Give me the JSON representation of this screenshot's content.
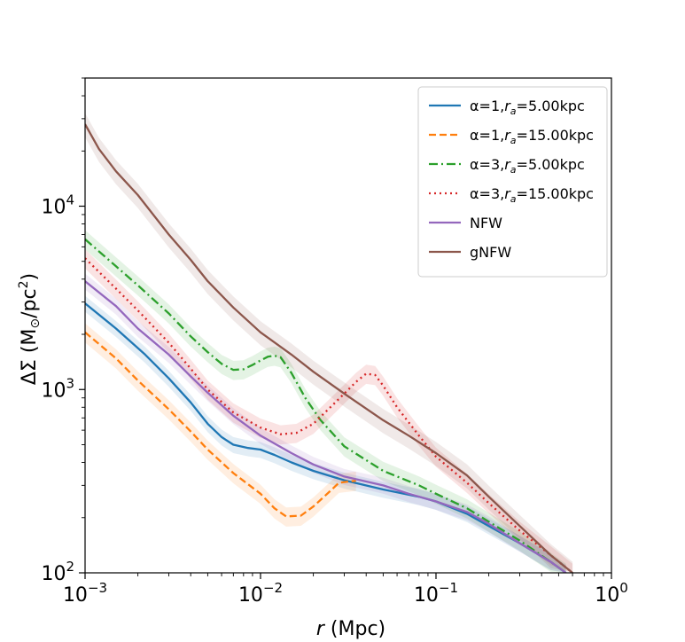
{
  "chart_data": {
    "type": "line",
    "xlabel": "r (Mpc)",
    "ylabel": "ΔΣ (M⊙/pc²)",
    "xscale": "log",
    "yscale": "log",
    "xlim": [
      0.001,
      1.0
    ],
    "ylim": [
      100,
      50000
    ],
    "grid": false,
    "legend_position": "top-right",
    "x_ticks": [
      {
        "value": 0.001,
        "base": "10",
        "exp": "−3"
      },
      {
        "value": 0.01,
        "base": "10",
        "exp": "−2"
      },
      {
        "value": 0.1,
        "base": "10",
        "exp": "−1"
      },
      {
        "value": 1.0,
        "base": "10",
        "exp": "0"
      }
    ],
    "y_ticks": [
      {
        "value": 100,
        "base": "10",
        "exp": "2"
      },
      {
        "value": 1000,
        "base": "10",
        "exp": "3"
      },
      {
        "value": 10000,
        "base": "10",
        "exp": "4"
      }
    ],
    "series": [
      {
        "name": "α=1,r_a=5.00kpc",
        "label_parts": {
          "prefix": "α=1,",
          "var": "r",
          "sub": "a",
          "suffix": "=5.00kpc"
        },
        "color": "#1f77b4",
        "style": "solid",
        "band": 0.1,
        "points": [
          [
            0.001,
            2950
          ],
          [
            0.0015,
            2150
          ],
          [
            0.0022,
            1550
          ],
          [
            0.003,
            1150
          ],
          [
            0.004,
            850
          ],
          [
            0.005,
            650
          ],
          [
            0.006,
            550
          ],
          [
            0.007,
            500
          ],
          [
            0.0085,
            480
          ],
          [
            0.01,
            470
          ],
          [
            0.012,
            440
          ],
          [
            0.015,
            400
          ],
          [
            0.02,
            360
          ],
          [
            0.03,
            320
          ],
          [
            0.05,
            285
          ],
          [
            0.08,
            260
          ],
          [
            0.1,
            245
          ],
          [
            0.15,
            210
          ],
          [
            0.2,
            180
          ],
          [
            0.3,
            145
          ],
          [
            0.45,
            115
          ],
          [
            0.55,
            100
          ]
        ]
      },
      {
        "name": "α=1,r_a=15.00kpc",
        "label_parts": {
          "prefix": "α=1,",
          "var": "r",
          "sub": "a",
          "suffix": "=15.00kpc"
        },
        "color": "#ff7f0e",
        "style": "dashed",
        "band": 0.12,
        "points": [
          [
            0.001,
            2050
          ],
          [
            0.0015,
            1480
          ],
          [
            0.002,
            1120
          ],
          [
            0.003,
            780
          ],
          [
            0.004,
            590
          ],
          [
            0.005,
            470
          ],
          [
            0.007,
            350
          ],
          [
            0.01,
            270
          ],
          [
            0.012,
            225
          ],
          [
            0.014,
            203
          ],
          [
            0.017,
            205
          ],
          [
            0.02,
            230
          ],
          [
            0.025,
            280
          ],
          [
            0.028,
            310
          ],
          [
            0.035,
            318
          ]
        ]
      },
      {
        "name": "α=3,r_a=5.00kpc",
        "label_parts": {
          "prefix": "α=3,",
          "var": "r",
          "sub": "a",
          "suffix": "=5.00kpc"
        },
        "color": "#2ca02c",
        "style": "dashdot",
        "band": 0.12,
        "points": [
          [
            0.001,
            6600
          ],
          [
            0.0015,
            4700
          ],
          [
            0.002,
            3700
          ],
          [
            0.003,
            2600
          ],
          [
            0.004,
            1950
          ],
          [
            0.005,
            1600
          ],
          [
            0.006,
            1380
          ],
          [
            0.007,
            1280
          ],
          [
            0.008,
            1290
          ],
          [
            0.009,
            1360
          ],
          [
            0.01,
            1440
          ],
          [
            0.011,
            1510
          ],
          [
            0.012,
            1530
          ],
          [
            0.013,
            1500
          ],
          [
            0.015,
            1230
          ],
          [
            0.018,
            900
          ],
          [
            0.022,
            680
          ],
          [
            0.03,
            490
          ],
          [
            0.05,
            360
          ],
          [
            0.08,
            300
          ],
          [
            0.1,
            270
          ],
          [
            0.15,
            225
          ],
          [
            0.2,
            190
          ],
          [
            0.3,
            150
          ],
          [
            0.45,
            115
          ],
          [
            0.55,
            100
          ]
        ]
      },
      {
        "name": "α=3,r_a=15.00kpc",
        "label_parts": {
          "prefix": "α=3,",
          "var": "r",
          "sub": "a",
          "suffix": "=15.00kpc"
        },
        "color": "#d62728",
        "style": "dotted",
        "band": 0.12,
        "points": [
          [
            0.001,
            5200
          ],
          [
            0.0015,
            3550
          ],
          [
            0.002,
            2700
          ],
          [
            0.003,
            1800
          ],
          [
            0.004,
            1300
          ],
          [
            0.005,
            1000
          ],
          [
            0.007,
            750
          ],
          [
            0.01,
            620
          ],
          [
            0.013,
            570
          ],
          [
            0.016,
            580
          ],
          [
            0.02,
            650
          ],
          [
            0.025,
            800
          ],
          [
            0.03,
            950
          ],
          [
            0.035,
            1100
          ],
          [
            0.04,
            1220
          ],
          [
            0.045,
            1200
          ],
          [
            0.05,
            1050
          ],
          [
            0.06,
            800
          ],
          [
            0.08,
            560
          ],
          [
            0.1,
            430
          ],
          [
            0.15,
            310
          ],
          [
            0.2,
            240
          ],
          [
            0.3,
            170
          ],
          [
            0.45,
            125
          ],
          [
            0.6,
            100
          ]
        ]
      },
      {
        "name": "NFW",
        "label_parts": {
          "prefix": "NFW",
          "var": "",
          "sub": "",
          "suffix": ""
        },
        "color": "#9467bd",
        "style": "solid",
        "band": 0.1,
        "points": [
          [
            0.001,
            3900
          ],
          [
            0.0015,
            2850
          ],
          [
            0.002,
            2150
          ],
          [
            0.003,
            1550
          ],
          [
            0.004,
            1180
          ],
          [
            0.005,
            960
          ],
          [
            0.007,
            720
          ],
          [
            0.01,
            560
          ],
          [
            0.015,
            450
          ],
          [
            0.02,
            390
          ],
          [
            0.03,
            335
          ],
          [
            0.05,
            300
          ],
          [
            0.07,
            270
          ],
          [
            0.1,
            245
          ],
          [
            0.15,
            215
          ],
          [
            0.2,
            185
          ],
          [
            0.3,
            145
          ],
          [
            0.45,
            115
          ],
          [
            0.55,
            100
          ]
        ]
      },
      {
        "name": "gNFW",
        "label_parts": {
          "prefix": "gNFW",
          "var": "",
          "sub": "",
          "suffix": ""
        },
        "color": "#8c564b",
        "style": "solid",
        "band": 0.15,
        "points": [
          [
            0.001,
            28000
          ],
          [
            0.0012,
            20500
          ],
          [
            0.0015,
            15500
          ],
          [
            0.002,
            11500
          ],
          [
            0.003,
            7000
          ],
          [
            0.004,
            5100
          ],
          [
            0.005,
            3900
          ],
          [
            0.007,
            2800
          ],
          [
            0.01,
            2050
          ],
          [
            0.015,
            1550
          ],
          [
            0.02,
            1250
          ],
          [
            0.03,
            950
          ],
          [
            0.05,
            680
          ],
          [
            0.07,
            560
          ],
          [
            0.1,
            450
          ],
          [
            0.15,
            340
          ],
          [
            0.2,
            260
          ],
          [
            0.3,
            180
          ],
          [
            0.45,
            125
          ],
          [
            0.6,
            100
          ]
        ]
      }
    ]
  }
}
